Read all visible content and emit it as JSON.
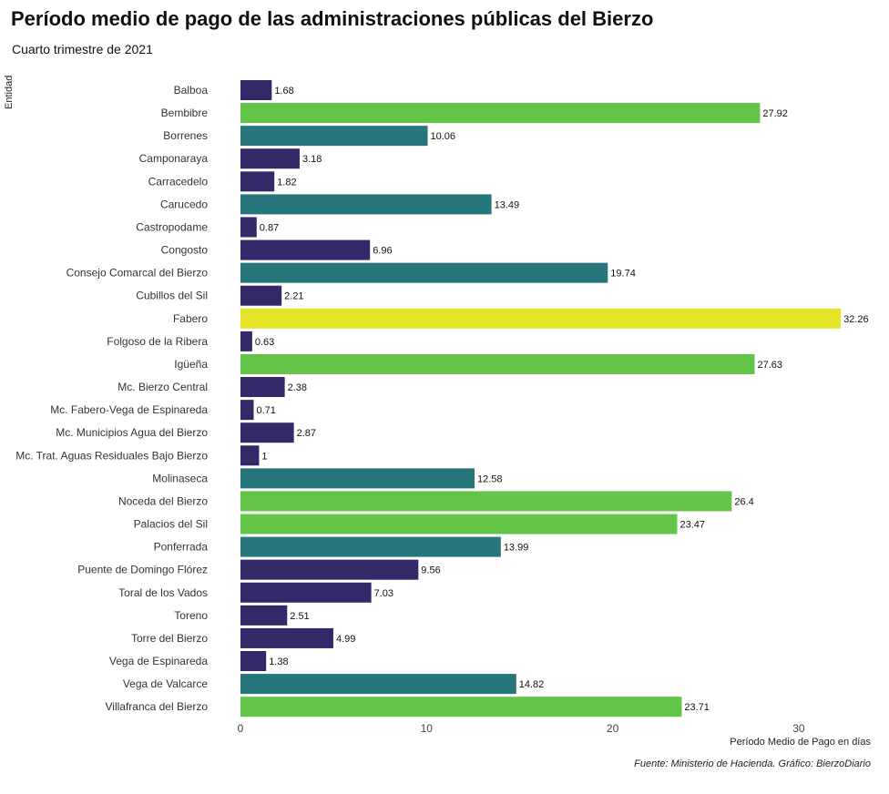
{
  "chart_data": {
    "type": "bar",
    "orientation": "horizontal",
    "title": "Período medio de pago de las administraciones públicas del Bierzo",
    "subtitle": "Cuarto trimestre de 2021",
    "xlabel": "Período Medio de Pago en días",
    "ylabel": "Entidad",
    "caption": "Fuente: Ministerio de Hacienda. Gráfico: BierzoDiario",
    "xlim": [
      0,
      32.26
    ],
    "xticks": [
      0,
      10,
      20,
      30
    ],
    "grid": false,
    "legend": "none",
    "categories": [
      "Balboa",
      "Bembibre",
      "Borrenes",
      "Camponaraya",
      "Carracedelo",
      "Carucedo",
      "Castropodame",
      "Congosto",
      "Consejo Comarcal del Bierzo",
      "Cubillos del Sil",
      "Fabero",
      "Folgoso de la Ribera",
      "Igüeña",
      "Mc. Bierzo Central",
      "Mc. Fabero-Vega de Espinareda",
      "Mc. Municipios Agua del Bierzo",
      "Mc. Trat. Aguas Residuales Bajo Bierzo",
      "Molinaseca",
      "Noceda del Bierzo",
      "Palacios del Sil",
      "Ponferrada",
      "Puente de Domingo Flórez",
      "Toral de los Vados",
      "Toreno",
      "Torre del Bierzo",
      "Vega de Espinareda",
      "Vega de Valcarce",
      "Villafranca del Bierzo"
    ],
    "values": [
      1.68,
      27.92,
      10.06,
      3.18,
      1.82,
      13.49,
      0.87,
      6.96,
      19.74,
      2.21,
      32.26,
      0.63,
      27.63,
      2.38,
      0.71,
      2.87,
      1,
      12.58,
      26.4,
      23.47,
      13.99,
      9.56,
      7.03,
      2.51,
      4.99,
      1.38,
      14.82,
      23.71
    ],
    "value_labels": [
      "1.68",
      "27.92",
      "10.06",
      "3.18",
      "1.82",
      "13.49",
      "0.87",
      "6.96",
      "19.74",
      "2.21",
      "32.26",
      "0.63",
      "27.63",
      "2.38",
      "0.71",
      "2.87",
      "1",
      "12.58",
      "26.4",
      "23.47",
      "13.99",
      "9.56",
      "7.03",
      "2.51",
      "4.99",
      "1.38",
      "14.82",
      "23.71"
    ],
    "color_scale": "viridis",
    "colors": {
      "low": "#342868",
      "mid": "#26767b",
      "high": "#62c548",
      "max": "#e3e327"
    }
  }
}
